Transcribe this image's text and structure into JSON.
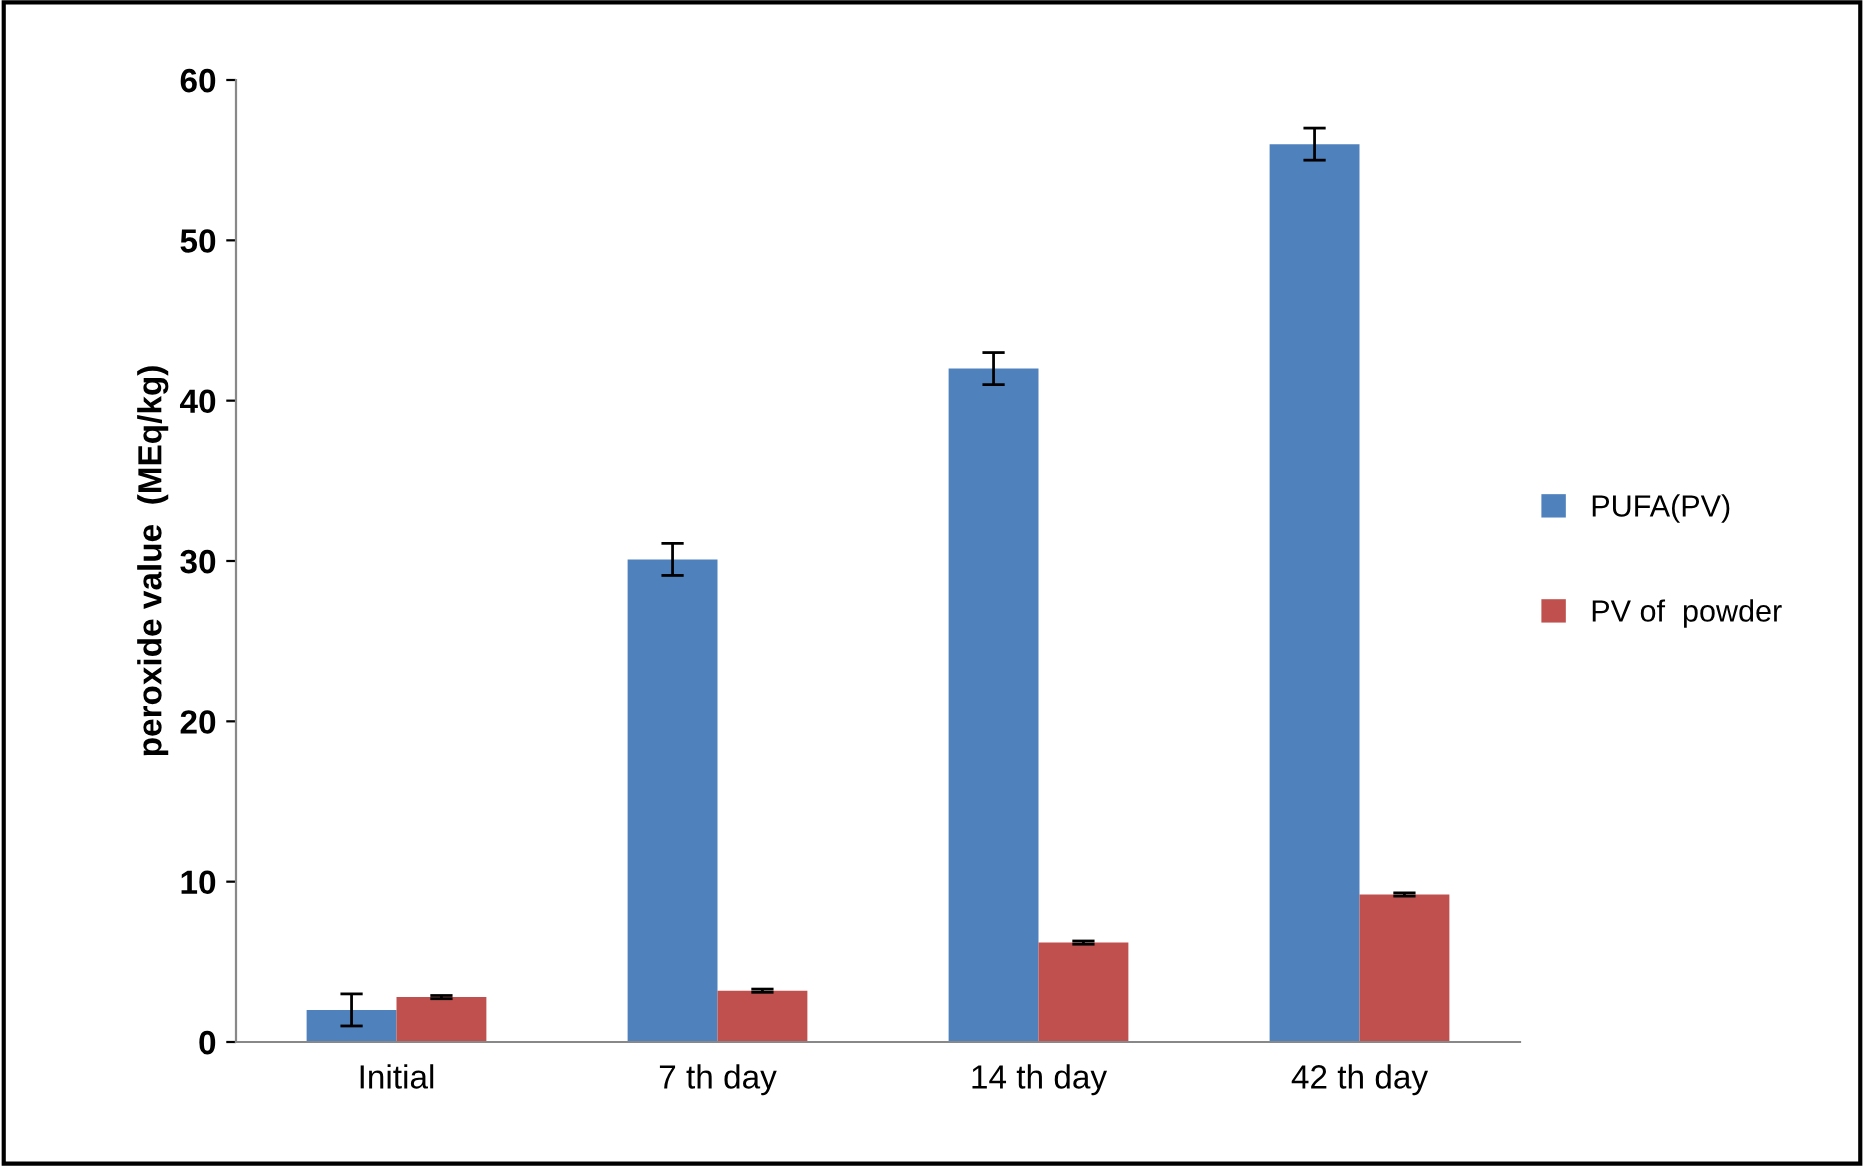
{
  "chart_data": {
    "type": "bar",
    "ylabel": "peroxide value  (MEq/kg)",
    "categories": [
      "Initial",
      "7 th day",
      "14 th day",
      "42 th day"
    ],
    "series": [
      {
        "name": "PUFA(PV)",
        "color": "#4f81bd",
        "values": [
          2.0,
          30.1,
          42.0,
          56.0
        ],
        "errors": [
          1.0,
          1.0,
          1.0,
          1.0
        ]
      },
      {
        "name": "PV of  powder",
        "color": "#c0504d",
        "values": [
          2.8,
          3.2,
          6.2,
          9.2
        ],
        "errors": [
          0.1,
          0.1,
          0.1,
          0.1
        ]
      }
    ],
    "ylim": [
      0,
      60
    ],
    "yticks": [
      0,
      10,
      20,
      30,
      40,
      50,
      60
    ],
    "grid": false,
    "legend": "right"
  }
}
